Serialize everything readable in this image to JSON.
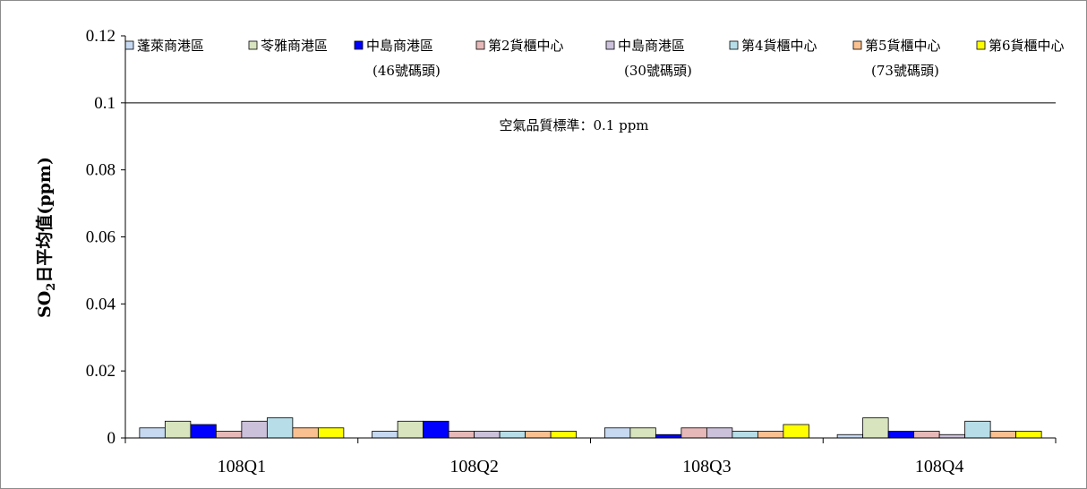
{
  "chart_data": {
    "type": "bar",
    "categories": [
      "108Q1",
      "108Q2",
      "108Q3",
      "108Q4"
    ],
    "ylabel_main": "SO",
    "ylabel_sub": "2",
    "ylabel_rest": "日平均值(ppm)",
    "ylim": [
      0,
      0.12
    ],
    "yticks": [
      "0",
      "0.02",
      "0.04",
      "0.06",
      "0.08",
      "0.1",
      "0.12"
    ],
    "ytick_values": [
      0,
      0.02,
      0.04,
      0.06,
      0.08,
      0.1,
      0.12
    ],
    "grid": false,
    "legend_position": "top",
    "series": [
      {
        "name": "蓬萊商港區",
        "color": "#c6d9f1",
        "values": [
          0.003,
          0.002,
          0.003,
          0.001
        ]
      },
      {
        "name": "苓雅商港區",
        "color": "#d7e4bd",
        "values": [
          0.005,
          0.005,
          0.003,
          0.006
        ]
      },
      {
        "name": "中島商港區\n(46號碼頭)",
        "color": "#0000ff",
        "values": [
          0.004,
          0.005,
          0.001,
          0.002
        ]
      },
      {
        "name": "第2貨櫃中心",
        "color": "#e6b9b8",
        "values": [
          0.002,
          0.002,
          0.003,
          0.002
        ]
      },
      {
        "name": "中島商港區\n(30號碼頭)",
        "color": "#ccc1da",
        "values": [
          0.005,
          0.002,
          0.003,
          0.001
        ]
      },
      {
        "name": "第4貨櫃中心",
        "color": "#b7dee8",
        "values": [
          0.006,
          0.002,
          0.002,
          0.005
        ]
      },
      {
        "name": "第5貨櫃中心\n(73號碼頭)",
        "color": "#fac090",
        "values": [
          0.003,
          0.002,
          0.002,
          0.002
        ]
      },
      {
        "name": "第6貨櫃中心",
        "color": "#ffff00",
        "values": [
          0.003,
          0.002,
          0.004,
          0.002
        ]
      }
    ],
    "reference_line": {
      "value": 0.1,
      "label": "空氣品質標準：0.1 ppm"
    }
  }
}
